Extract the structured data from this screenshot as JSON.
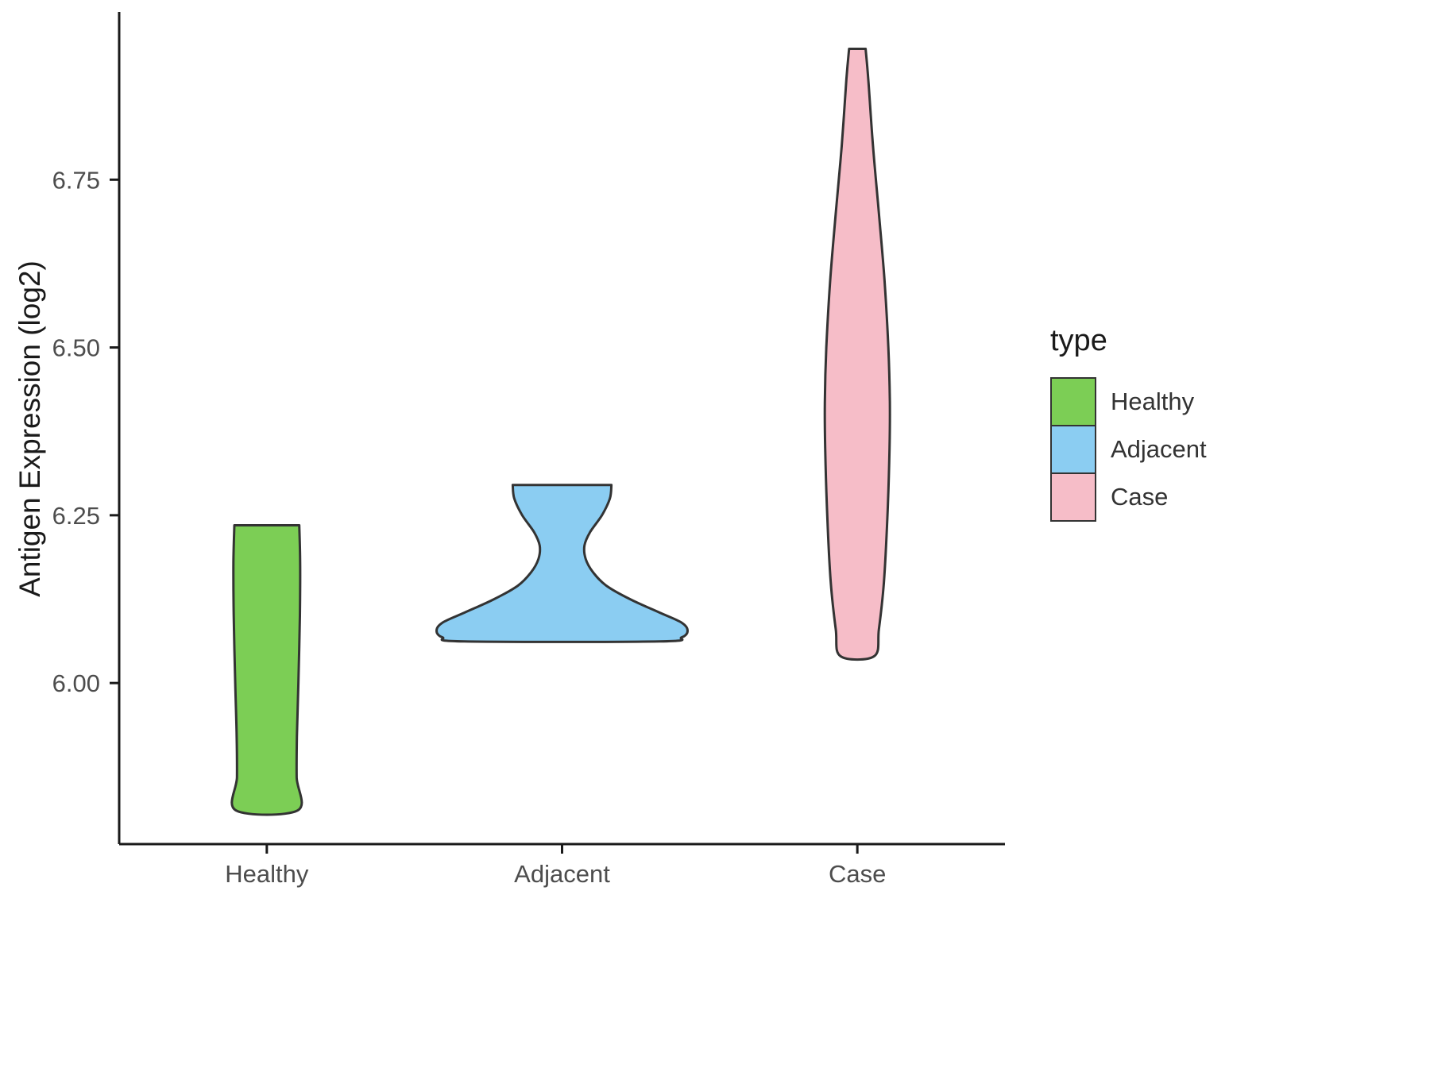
{
  "figure": {
    "background": "#ffffff"
  },
  "style": {
    "axis_color": "#1a1a1a",
    "tick_label_color": "#4d4d4d",
    "violin_outline": "#333333"
  },
  "legend": {
    "title": "type",
    "items": [
      {
        "label": "Healthy",
        "color": "#7cce55"
      },
      {
        "label": "Adjacent",
        "color": "#8bcdf2"
      },
      {
        "label": "Case",
        "color": "#f6bdc8"
      }
    ]
  },
  "chart_data": {
    "type": "violin",
    "title": "",
    "xlabel": "",
    "ylabel": "Antigen Expression (log2)",
    "ylim": [
      5.76,
      7.0
    ],
    "yticks": [
      {
        "value": 6.0,
        "label": "6.00"
      },
      {
        "value": 6.25,
        "label": "6.25"
      },
      {
        "value": 6.5,
        "label": "6.50"
      },
      {
        "value": 6.75,
        "label": "6.75"
      }
    ],
    "categories": [
      "Healthy",
      "Adjacent",
      "Case"
    ],
    "grid": false,
    "legend_position": "right",
    "series": [
      {
        "name": "Healthy",
        "color": "#7cce55",
        "range": [
          5.81,
          6.235
        ],
        "profile": [
          [
            6.235,
            0.11
          ],
          [
            6.18,
            0.113
          ],
          [
            6.1,
            0.112
          ],
          [
            6.0,
            0.107
          ],
          [
            5.92,
            0.102
          ],
          [
            5.86,
            0.101
          ],
          [
            5.81,
            0.104
          ]
        ]
      },
      {
        "name": "Adjacent",
        "color": "#8bcdf2",
        "range": [
          6.062,
          6.295
        ],
        "profile": [
          [
            6.295,
            0.167
          ],
          [
            6.275,
            0.162
          ],
          [
            6.25,
            0.135
          ],
          [
            6.225,
            0.095
          ],
          [
            6.205,
            0.076
          ],
          [
            6.185,
            0.08
          ],
          [
            6.165,
            0.105
          ],
          [
            6.145,
            0.15
          ],
          [
            6.125,
            0.23
          ],
          [
            6.105,
            0.33
          ],
          [
            6.09,
            0.405
          ],
          [
            6.078,
            0.425
          ],
          [
            6.068,
            0.405
          ],
          [
            6.062,
            0.33
          ]
        ]
      },
      {
        "name": "Case",
        "color": "#f6bdc8",
        "range": [
          6.04,
          6.945
        ],
        "profile": [
          [
            6.945,
            0.028
          ],
          [
            6.9,
            0.037
          ],
          [
            6.8,
            0.053
          ],
          [
            6.7,
            0.073
          ],
          [
            6.6,
            0.092
          ],
          [
            6.5,
            0.105
          ],
          [
            6.42,
            0.11
          ],
          [
            6.35,
            0.109
          ],
          [
            6.25,
            0.102
          ],
          [
            6.15,
            0.09
          ],
          [
            6.08,
            0.073
          ],
          [
            6.04,
            0.057
          ]
        ]
      }
    ]
  }
}
